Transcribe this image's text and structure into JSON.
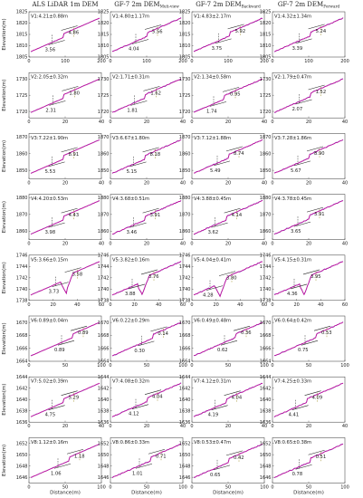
{
  "columns": [
    "ALS LiDAR 1m DEM",
    "GF-7 2m DEM",
    "GF-7 2m DEM",
    "GF-7 2m DEM"
  ],
  "column_subscripts": [
    "",
    "Muti-view",
    "Backward",
    "Forward"
  ],
  "x_axis_label": "Distance(m)",
  "y_axis_label": "Elevation(m)",
  "colors": {
    "profile": "#c8179f",
    "fitted": "#2a2ab8",
    "guide": "#222222",
    "guide_alt": "#9a8a1c"
  },
  "chart_data": [
    {
      "row": 1,
      "x_ticks": [
        "0",
        "100",
        "200"
      ],
      "x_max": 200,
      "y_ticks": [
        "1825",
        "1820",
        "1815",
        "1810",
        "1805"
      ],
      "y_min": 1805,
      "y_max": 1825,
      "panels": [
        {
          "title": "V1:4.21±0.88m",
          "a": "3.56",
          "b": "4.86",
          "cut": 0.47
        },
        {
          "title": "V1:4.80±1.17m",
          "a": "4.04",
          "b": "5.56",
          "cut": 0.5
        },
        {
          "title": "V1:4.83±2.17m",
          "a": "3.75",
          "b": "5.92",
          "cut": 0.52
        },
        {
          "title": "V1:4.32±1.34m",
          "a": "3.39",
          "b": "5.24",
          "cut": 0.52
        }
      ]
    },
    {
      "row": 2,
      "x_ticks": [
        "0",
        "20",
        "40"
      ],
      "x_max": 40,
      "y_ticks": [
        "1730",
        "1725",
        "1720"
      ],
      "y_min": 1718,
      "y_max": 1732,
      "panels": [
        {
          "title": "V2:2.05±0.32m",
          "a": "2.31",
          "b": "1.80",
          "cut": 0.48
        },
        {
          "title": "V2:1.71±0.31m",
          "a": "1.81",
          "b": "1.62",
          "cut": 0.48
        },
        {
          "title": "V2:1.34±0.58m",
          "a": "1.74",
          "b": "0.95",
          "cut": 0.45
        },
        {
          "title": "V2:1.79±0.47m",
          "a": "2.07",
          "b": "1.52",
          "cut": 0.52
        }
      ]
    },
    {
      "row": 3,
      "x_ticks": [
        "0",
        "20",
        "40"
      ],
      "x_max": 40,
      "y_ticks": [
        "1870",
        "1860",
        "1850"
      ],
      "y_min": 1845,
      "y_max": 1872,
      "panels": [
        {
          "title": "V3:7.22±1.90m",
          "a": "5.53",
          "b": "8.91",
          "cut": 0.47
        },
        {
          "title": "V3:6.67±1.80m",
          "a": "5.15",
          "b": "8.18",
          "cut": 0.47
        },
        {
          "title": "V3:7.12±1.88m",
          "a": "5.49",
          "b": "8.74",
          "cut": 0.5
        },
        {
          "title": "V3:7.28±1.86m",
          "a": "5.67",
          "b": "8.90",
          "cut": 0.5
        }
      ]
    },
    {
      "row": 4,
      "x_ticks": [
        "0",
        "20",
        "40"
      ],
      "x_max": 40,
      "y_ticks": [
        "1880",
        "1870",
        "1860"
      ],
      "y_min": 1855,
      "y_max": 1882,
      "panels": [
        {
          "title": "V4:4.20±0.53m",
          "a": "3.98",
          "b": "4.43",
          "cut": 0.47
        },
        {
          "title": "V4:3.68±0.51m",
          "a": "3.46",
          "b": "3.91",
          "cut": 0.47
        },
        {
          "title": "V4:3.88±0.45m",
          "a": "3.62",
          "b": "4.14",
          "cut": 0.47
        },
        {
          "title": "V4:3.78±0.45m",
          "a": "3.65",
          "b": "3.91",
          "cut": 0.5
        }
      ]
    },
    {
      "row": 5,
      "x_ticks": [
        "0",
        "20",
        "40",
        "60"
      ],
      "x_max": 60,
      "y_ticks": [
        "1746",
        "1744",
        "1742",
        "1740",
        "1738"
      ],
      "y_min": 1738,
      "y_max": 1746,
      "panels": [
        {
          "title": "V5:3.66±0.15m",
          "a": "3.73",
          "b": "3.58",
          "cut": 0.52
        },
        {
          "title": "V5:3.82±0.16m",
          "a": "3.88",
          "b": "3.76",
          "cut": 0.45
        },
        {
          "title": "V5:4.04±0.41m",
          "a": "4.28",
          "b": "3.80",
          "cut": 0.4
        },
        {
          "title": "V5:4.15±0.31m",
          "a": "4.36",
          "b": "3.95",
          "cut": 0.45
        }
      ]
    },
    {
      "row": 6,
      "x_ticks": [
        "0",
        "50",
        "100"
      ],
      "x_max": 100,
      "y_ticks": [
        "1670",
        "1668",
        "1666",
        "1664"
      ],
      "y_min": 1664,
      "y_max": 1671,
      "panels": [
        {
          "title": "V6:0.89±0.04m",
          "a": "0.89",
          "b": "0.89",
          "cut": 0.6
        },
        {
          "title": "V6:0.22±0.29m",
          "a": "0.30",
          "b": "0.14",
          "cut": 0.58
        },
        {
          "title": "V6:0.49±0.48m",
          "a": "0.62",
          "b": "0.36",
          "cut": 0.6
        },
        {
          "title": "V6:0.64±0.42m",
          "a": "0.75",
          "b": "0.53",
          "cut": 0.6
        }
      ]
    },
    {
      "row": 7,
      "x_ticks": [
        "0",
        "20",
        "40"
      ],
      "x_max": 40,
      "y_ticks": [
        "1644",
        "1642",
        "1640",
        "1638",
        "1636"
      ],
      "y_min": 1636,
      "y_max": 1644,
      "panels": [
        {
          "title": "V7:5.02±0.39m",
          "a": "4.75",
          "b": "5.29",
          "cut": 0.47
        },
        {
          "title": "V7:4.08±0.32m",
          "a": "4.12",
          "b": "4.04",
          "cut": 0.5
        },
        {
          "title": "V7:4.12±0.31m",
          "a": "4.19",
          "b": "4.04",
          "cut": 0.47
        },
        {
          "title": "V7:4.25±0.33m",
          "a": "4.41",
          "b": "4.09",
          "cut": 0.47
        }
      ]
    },
    {
      "row": 8,
      "x_ticks": [
        "0",
        "50",
        "100"
      ],
      "x_max": 100,
      "y_ticks": [
        "1652",
        "1650",
        "1648",
        "1646"
      ],
      "y_min": 1645,
      "y_max": 1653,
      "panels": [
        {
          "title": "V8:1.12±0.16m",
          "a": "1.06",
          "b": "1.18",
          "cut": 0.55
        },
        {
          "title": "V8:0.86±0.33m",
          "a": "1.01",
          "b": "0.71",
          "cut": 0.55
        },
        {
          "title": "V8:0.53±0.47m",
          "a": "0.65",
          "b": "0.42",
          "cut": 0.5
        },
        {
          "title": "V8:0.65±0.38m",
          "a": "0.78",
          "b": "0.51",
          "cut": 0.52
        }
      ]
    }
  ]
}
